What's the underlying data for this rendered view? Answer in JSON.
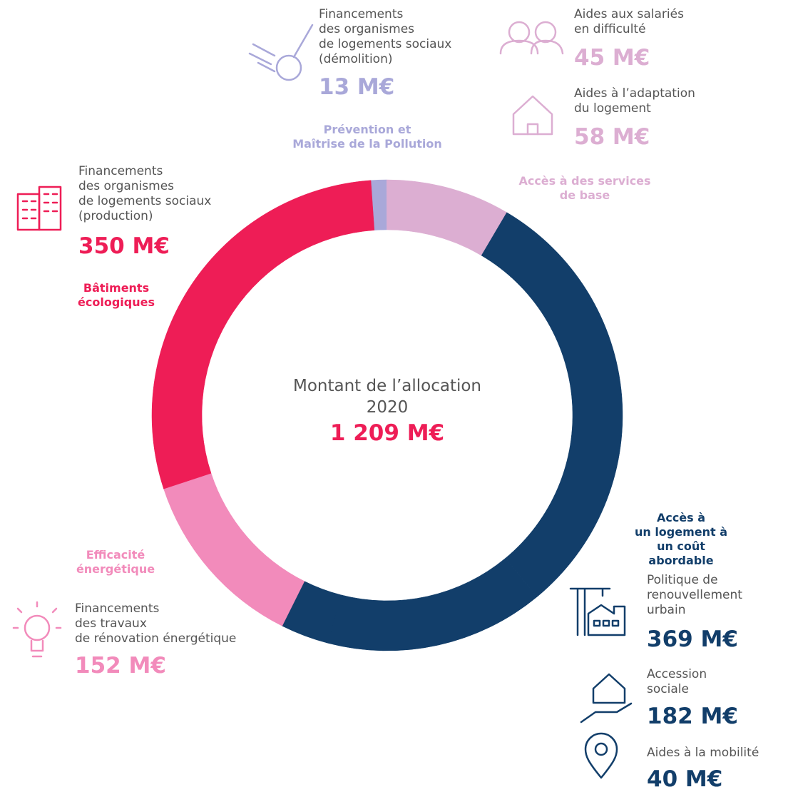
{
  "chart_data": {
    "type": "donut",
    "title": "Montant de l’allocation\n2020",
    "total": {
      "value": 1209,
      "label": "1 209 M€"
    },
    "series": [
      {
        "name": "Prévention et\nMaîtrise de la Pollution",
        "color": "#a9a8d9",
        "labels": [
          "Financements\ndes organismes\nde logements sociaux\n(démolition)"
        ],
        "values": [
          13
        ],
        "value_labels": [
          "13 M€"
        ]
      },
      {
        "name": "Accès à des services\nde base",
        "color": "#dcaed2",
        "labels": [
          "Aides aux salariés\nen difficulté",
          "Aides à l’adaptation\ndu logement"
        ],
        "values": [
          45,
          58
        ],
        "value_labels": [
          "45 M€",
          "58 M€"
        ]
      },
      {
        "name": "Accès à\nun logement à\nun coût abordable",
        "color": "#123e6a",
        "labels": [
          "Politique de\nrenouvellement\nurbain",
          "Accession\nsociale",
          "Aides à la mobilité"
        ],
        "values": [
          369,
          182,
          40
        ],
        "value_labels": [
          "369 M€",
          "182 M€",
          "40 M€"
        ]
      },
      {
        "name": "Efficacité\nénergétique",
        "color": "#f28bbb",
        "labels": [
          "Financements\ndes travaux\nde rénovation énergétique"
        ],
        "values": [
          152
        ],
        "value_labels": [
          "152 M€"
        ]
      },
      {
        "name": "Bâtiments\nécologiques",
        "color": "#ee1d56",
        "labels": [
          "Financements\ndes organismes\nde logements sociaux\n(production)"
        ],
        "values": [
          350
        ],
        "value_labels": [
          "350 M€"
        ]
      }
    ]
  }
}
